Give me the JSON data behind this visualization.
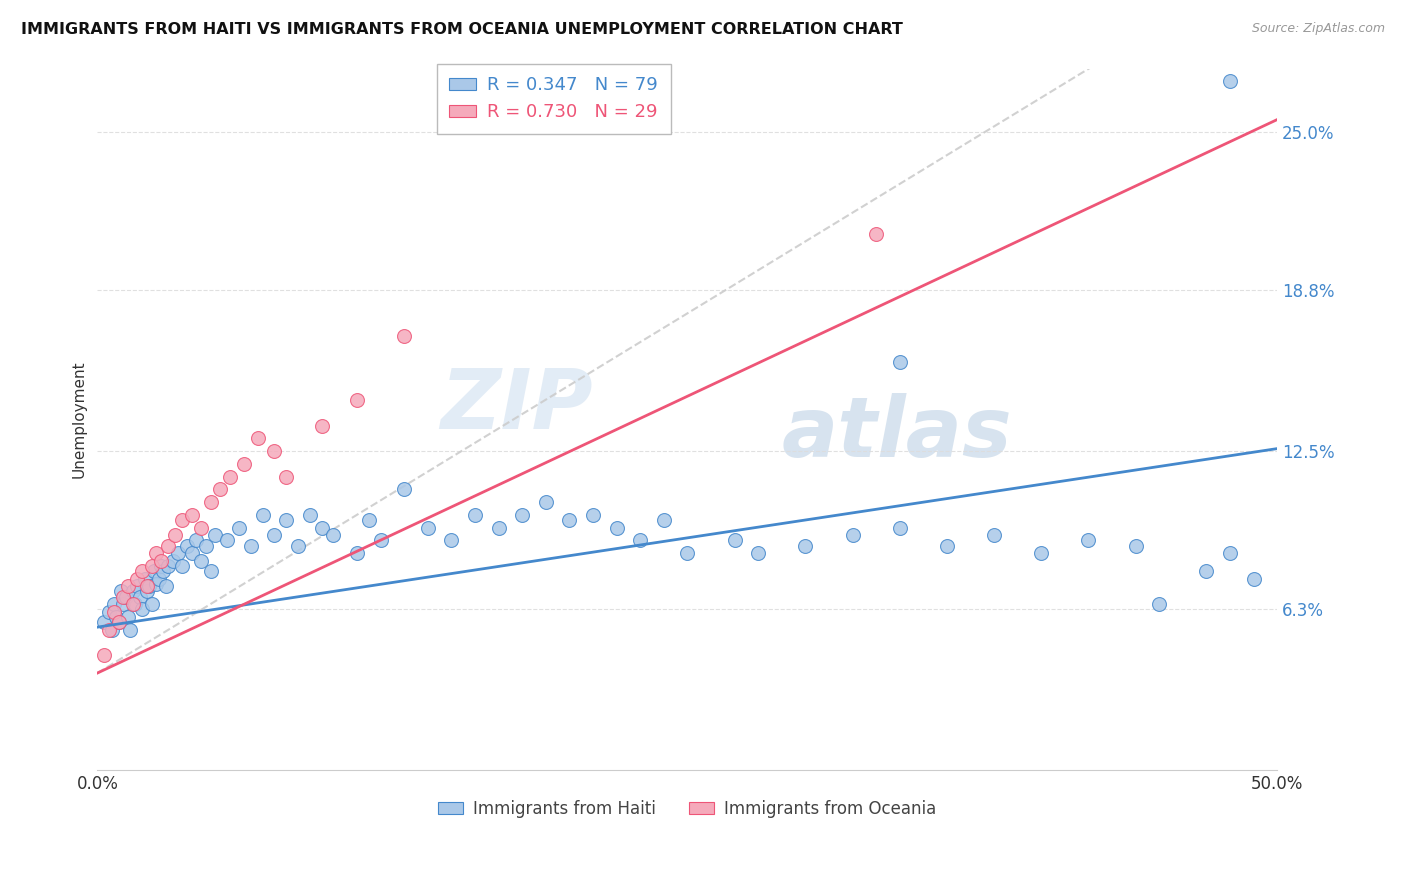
{
  "title": "IMMIGRANTS FROM HAITI VS IMMIGRANTS FROM OCEANIA UNEMPLOYMENT CORRELATION CHART",
  "source": "Source: ZipAtlas.com",
  "xlabel": "",
  "ylabel": "Unemployment",
  "xlim": [
    0.0,
    0.5
  ],
  "ylim": [
    0.0,
    0.275
  ],
  "yticks": [
    0.063,
    0.125,
    0.188,
    0.25
  ],
  "ytick_labels": [
    "6.3%",
    "12.5%",
    "18.8%",
    "25.0%"
  ],
  "xticks": [
    0.0,
    0.1,
    0.2,
    0.3,
    0.4,
    0.5
  ],
  "xtick_labels": [
    "0.0%",
    "",
    "",
    "",
    "",
    "50.0%"
  ],
  "haiti_R": 0.347,
  "haiti_N": 79,
  "oceania_R": 0.73,
  "oceania_N": 29,
  "haiti_color": "#aac8e8",
  "oceania_color": "#f5aabb",
  "haiti_line_color": "#4488cc",
  "oceania_line_color": "#ee5577",
  "trend_line_color": "#cccccc",
  "haiti_scatter_x": [
    0.003,
    0.005,
    0.006,
    0.007,
    0.008,
    0.009,
    0.01,
    0.011,
    0.012,
    0.013,
    0.014,
    0.015,
    0.016,
    0.017,
    0.018,
    0.019,
    0.02,
    0.021,
    0.022,
    0.023,
    0.024,
    0.025,
    0.026,
    0.027,
    0.028,
    0.029,
    0.03,
    0.032,
    0.034,
    0.036,
    0.038,
    0.04,
    0.042,
    0.044,
    0.046,
    0.048,
    0.05,
    0.055,
    0.06,
    0.065,
    0.07,
    0.075,
    0.08,
    0.085,
    0.09,
    0.095,
    0.1,
    0.11,
    0.115,
    0.12,
    0.13,
    0.14,
    0.15,
    0.16,
    0.17,
    0.18,
    0.19,
    0.2,
    0.21,
    0.22,
    0.23,
    0.24,
    0.25,
    0.27,
    0.28,
    0.3,
    0.32,
    0.34,
    0.36,
    0.38,
    0.4,
    0.42,
    0.44,
    0.45,
    0.47,
    0.48,
    0.49,
    0.34,
    0.48
  ],
  "haiti_scatter_y": [
    0.058,
    0.062,
    0.055,
    0.065,
    0.06,
    0.058,
    0.07,
    0.065,
    0.068,
    0.06,
    0.055,
    0.07,
    0.065,
    0.072,
    0.068,
    0.063,
    0.075,
    0.07,
    0.072,
    0.065,
    0.078,
    0.073,
    0.075,
    0.08,
    0.078,
    0.072,
    0.08,
    0.082,
    0.085,
    0.08,
    0.088,
    0.085,
    0.09,
    0.082,
    0.088,
    0.078,
    0.092,
    0.09,
    0.095,
    0.088,
    0.1,
    0.092,
    0.098,
    0.088,
    0.1,
    0.095,
    0.092,
    0.085,
    0.098,
    0.09,
    0.11,
    0.095,
    0.09,
    0.1,
    0.095,
    0.1,
    0.105,
    0.098,
    0.1,
    0.095,
    0.09,
    0.098,
    0.085,
    0.09,
    0.085,
    0.088,
    0.092,
    0.095,
    0.088,
    0.092,
    0.085,
    0.09,
    0.088,
    0.065,
    0.078,
    0.085,
    0.075,
    0.16,
    0.27
  ],
  "oceania_scatter_x": [
    0.003,
    0.005,
    0.007,
    0.009,
    0.011,
    0.013,
    0.015,
    0.017,
    0.019,
    0.021,
    0.023,
    0.025,
    0.027,
    0.03,
    0.033,
    0.036,
    0.04,
    0.044,
    0.048,
    0.052,
    0.056,
    0.062,
    0.068,
    0.075,
    0.08,
    0.095,
    0.11,
    0.13,
    0.33
  ],
  "oceania_scatter_y": [
    0.045,
    0.055,
    0.062,
    0.058,
    0.068,
    0.072,
    0.065,
    0.075,
    0.078,
    0.072,
    0.08,
    0.085,
    0.082,
    0.088,
    0.092,
    0.098,
    0.1,
    0.095,
    0.105,
    0.11,
    0.115,
    0.12,
    0.13,
    0.125,
    0.115,
    0.135,
    0.145,
    0.17,
    0.21
  ],
  "haiti_trend_start_x": 0.0,
  "haiti_trend_start_y": 0.056,
  "haiti_trend_end_x": 0.5,
  "haiti_trend_end_y": 0.126,
  "oceania_trend_start_x": 0.0,
  "oceania_trend_start_y": 0.038,
  "oceania_trend_end_x": 0.5,
  "oceania_trend_end_y": 0.255,
  "dashed_trend_start_x": 0.0,
  "dashed_trend_start_y": 0.038,
  "dashed_trend_end_x": 0.5,
  "dashed_trend_end_y": 0.32,
  "watermark_zip": "ZIP",
  "watermark_atlas": "atlas",
  "background_color": "#ffffff",
  "grid_color": "#dddddd"
}
